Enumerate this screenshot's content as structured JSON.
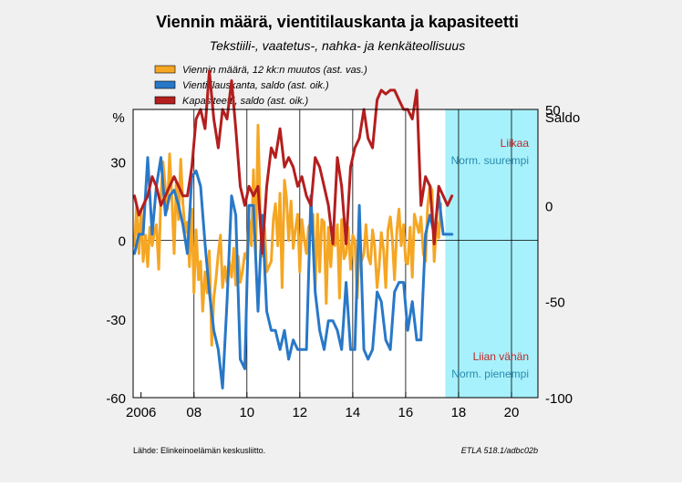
{
  "chart_data": {
    "type": "line",
    "title": "Viennin määrä, vientitilauskanta ja kapasiteetti",
    "subtitle": "Tekstiili-, vaatetus-, nahka- ja kenkäteollisuus",
    "left_axis": {
      "unit_label": "%",
      "ylim": [
        -60,
        50
      ],
      "ticks": [
        30,
        0,
        -30,
        -60
      ]
    },
    "right_axis": {
      "unit_label": "Saldo",
      "ylim": [
        -100,
        50
      ],
      "ticks": [
        50,
        0,
        -50,
        -100
      ]
    },
    "x_axis": {
      "xlim": [
        2005.7,
        2021.0
      ],
      "tick_labels": [
        "2006",
        "08",
        "10",
        "12",
        "14",
        "16",
        "18",
        "20"
      ],
      "tick_values": [
        2006,
        2008,
        2010,
        2012,
        2014,
        2016,
        2018,
        2020
      ]
    },
    "forecast_band": {
      "from": 2017.5,
      "to": 2021.0,
      "color": "#a6f1fb"
    },
    "annotations": {
      "upper_red": "Liikaa",
      "upper_blue": "Norm. suurempi",
      "lower_red": "Liian vähän",
      "lower_blue": "Norm. pienempi"
    },
    "colors": {
      "orange": "#f5a623",
      "blue": "#2878c8",
      "red": "#b41e1e",
      "annotation_red": "#c0282c",
      "annotation_blue": "#2a8ab0"
    },
    "series": [
      {
        "name": "Viennin määrä, 12 kk:n muutos (ast. vas.)",
        "axis": "left",
        "color": "#f5a623",
        "x": [
          2005.75,
          2005.83,
          2005.92,
          2006.0,
          2006.08,
          2006.17,
          2006.25,
          2006.33,
          2006.42,
          2006.5,
          2006.58,
          2006.67,
          2006.75,
          2006.83,
          2006.92,
          2007.0,
          2007.08,
          2007.17,
          2007.25,
          2007.33,
          2007.42,
          2007.5,
          2007.58,
          2007.67,
          2007.75,
          2007.83,
          2007.92,
          2008.0,
          2008.08,
          2008.17,
          2008.25,
          2008.33,
          2008.42,
          2008.5,
          2008.58,
          2008.67,
          2008.75,
          2008.83,
          2008.92,
          2009.0,
          2009.08,
          2009.17,
          2009.25,
          2009.33,
          2009.42,
          2009.5,
          2009.58,
          2009.67,
          2009.75,
          2009.83,
          2009.92,
          2010.0,
          2010.08,
          2010.17,
          2010.25,
          2010.33,
          2010.42,
          2010.5,
          2010.58,
          2010.67,
          2010.75,
          2010.83,
          2010.92,
          2011.0,
          2011.08,
          2011.17,
          2011.25,
          2011.33,
          2011.42,
          2011.5,
          2011.58,
          2011.67,
          2011.75,
          2011.83,
          2011.92,
          2012.0,
          2012.08,
          2012.17,
          2012.25,
          2012.33,
          2012.42,
          2012.5,
          2012.58,
          2012.67,
          2012.75,
          2012.83,
          2012.92,
          2013.0,
          2013.08,
          2013.17,
          2013.25,
          2013.33,
          2013.42,
          2013.5,
          2013.58,
          2013.67,
          2013.75,
          2013.83,
          2013.92,
          2014.0,
          2014.08,
          2014.17,
          2014.25,
          2014.33,
          2014.42,
          2014.5,
          2014.58,
          2014.67,
          2014.75,
          2014.83,
          2014.92,
          2015.0,
          2015.08,
          2015.17,
          2015.25,
          2015.33,
          2015.42,
          2015.5,
          2015.58,
          2015.67,
          2015.75,
          2015.83,
          2015.92,
          2016.0,
          2016.08,
          2016.17,
          2016.25,
          2016.33,
          2016.42,
          2016.5,
          2016.58,
          2016.67,
          2016.75,
          2016.83,
          2016.92,
          2017.0,
          2017.08,
          2017.17,
          2017.25,
          2017.33
        ],
        "values": [
          -2,
          13,
          -5,
          12,
          -8,
          2,
          -10,
          5,
          -2,
          3,
          6,
          -11,
          17,
          30,
          20,
          12,
          33,
          15,
          -5,
          22,
          8,
          31,
          14,
          3,
          7,
          -10,
          12,
          -20,
          4,
          -15,
          -8,
          -27,
          -12,
          -20,
          -4,
          -40,
          -22,
          -15,
          -5,
          2,
          -18,
          -10,
          -16,
          -8,
          -14,
          -3,
          -17,
          -6,
          -16,
          -12,
          -5,
          -7,
          8,
          -2,
          27,
          -5,
          44,
          12,
          -6,
          5,
          -12,
          -10,
          -8,
          8,
          14,
          -2,
          18,
          -18,
          23,
          16,
          0,
          15,
          -3,
          4,
          10,
          -12,
          8,
          0,
          -5,
          5,
          7,
          10,
          -18,
          10,
          -12,
          8,
          7,
          -24,
          5,
          -10,
          4,
          -2,
          6,
          -22,
          8,
          -7,
          -5,
          5,
          -11,
          2,
          0,
          -22,
          -2,
          -8,
          -5,
          6,
          -6,
          -9,
          4,
          -2,
          -18,
          -10,
          3,
          -4,
          -18,
          4,
          9,
          0,
          -15,
          4,
          12,
          -2,
          6,
          -8,
          -9,
          5,
          -14,
          10,
          6,
          3,
          9,
          -5,
          -8,
          13,
          21,
          19,
          -8,
          7,
          1,
          14
        ]
      },
      {
        "name": "Vientitilauskanta, saldo (ast. oik.)",
        "axis": "right",
        "color": "#2878c8",
        "x": [
          2005.75,
          2005.92,
          2006.08,
          2006.25,
          2006.42,
          2006.58,
          2006.75,
          2006.92,
          2007.08,
          2007.25,
          2007.42,
          2007.58,
          2007.75,
          2007.92,
          2008.08,
          2008.25,
          2008.42,
          2008.58,
          2008.75,
          2008.92,
          2009.08,
          2009.25,
          2009.42,
          2009.58,
          2009.75,
          2009.92,
          2010.08,
          2010.25,
          2010.42,
          2010.58,
          2010.75,
          2010.92,
          2011.08,
          2011.25,
          2011.42,
          2011.58,
          2011.75,
          2011.92,
          2012.08,
          2012.25,
          2012.42,
          2012.58,
          2012.75,
          2012.92,
          2013.08,
          2013.25,
          2013.42,
          2013.58,
          2013.75,
          2013.92,
          2014.08,
          2014.25,
          2014.42,
          2014.58,
          2014.75,
          2014.92,
          2015.08,
          2015.25,
          2015.42,
          2015.58,
          2015.75,
          2015.92,
          2016.08,
          2016.25,
          2016.42,
          2016.58,
          2016.75,
          2016.92,
          2017.08,
          2017.25,
          2017.42,
          2017.58,
          2017.75
        ],
        "values": [
          -25,
          -15,
          -15,
          25,
          -15,
          10,
          25,
          -5,
          5,
          8,
          0,
          -10,
          -25,
          15,
          18,
          10,
          -20,
          -45,
          -65,
          -75,
          -95,
          -50,
          5,
          -5,
          -80,
          -85,
          0,
          0,
          -55,
          -5,
          -55,
          -65,
          -65,
          -75,
          -65,
          -80,
          -70,
          -75,
          -75,
          -75,
          5,
          -45,
          -65,
          -75,
          -60,
          -60,
          -65,
          -75,
          -40,
          -75,
          -75,
          0,
          -75,
          -80,
          -75,
          -45,
          -50,
          -70,
          -75,
          -45,
          -40,
          -40,
          -65,
          -50,
          -70,
          -70,
          -15,
          -5,
          -15,
          5,
          -15,
          -15,
          -15
        ]
      },
      {
        "name": "Kapasiteetti, saldo (ast. oik.)",
        "axis": "right",
        "color": "#b41e1e",
        "x": [
          2005.75,
          2005.92,
          2006.08,
          2006.25,
          2006.42,
          2006.58,
          2006.75,
          2006.92,
          2007.08,
          2007.25,
          2007.42,
          2007.58,
          2007.75,
          2007.92,
          2008.08,
          2008.25,
          2008.42,
          2008.58,
          2008.75,
          2008.92,
          2009.08,
          2009.25,
          2009.42,
          2009.58,
          2009.75,
          2009.92,
          2010.08,
          2010.25,
          2010.42,
          2010.58,
          2010.75,
          2010.92,
          2011.08,
          2011.25,
          2011.42,
          2011.58,
          2011.75,
          2011.92,
          2012.08,
          2012.25,
          2012.42,
          2012.58,
          2012.75,
          2012.92,
          2013.08,
          2013.25,
          2013.42,
          2013.58,
          2013.75,
          2013.92,
          2014.08,
          2014.25,
          2014.42,
          2014.58,
          2014.75,
          2014.92,
          2015.08,
          2015.25,
          2015.42,
          2015.58,
          2015.75,
          2015.92,
          2016.08,
          2016.25,
          2016.42,
          2016.58,
          2016.75,
          2016.92,
          2017.08,
          2017.25,
          2017.42,
          2017.58,
          2017.75
        ],
        "values": [
          5,
          -5,
          0,
          5,
          15,
          10,
          0,
          5,
          10,
          15,
          10,
          5,
          5,
          20,
          45,
          50,
          40,
          70,
          45,
          30,
          50,
          45,
          65,
          40,
          10,
          0,
          10,
          5,
          10,
          -25,
          10,
          30,
          25,
          40,
          20,
          25,
          20,
          10,
          15,
          5,
          0,
          25,
          20,
          10,
          0,
          -20,
          25,
          10,
          -20,
          20,
          30,
          35,
          50,
          35,
          30,
          55,
          60,
          58,
          60,
          60,
          55,
          50,
          50,
          45,
          60,
          0,
          15,
          10,
          -20,
          10,
          5,
          0,
          5
        ]
      }
    ]
  },
  "footer": {
    "source": "Lähde:  Elinkeinoelämän keskusliitto.",
    "code": "ETLA 518.1/adbc02b"
  }
}
